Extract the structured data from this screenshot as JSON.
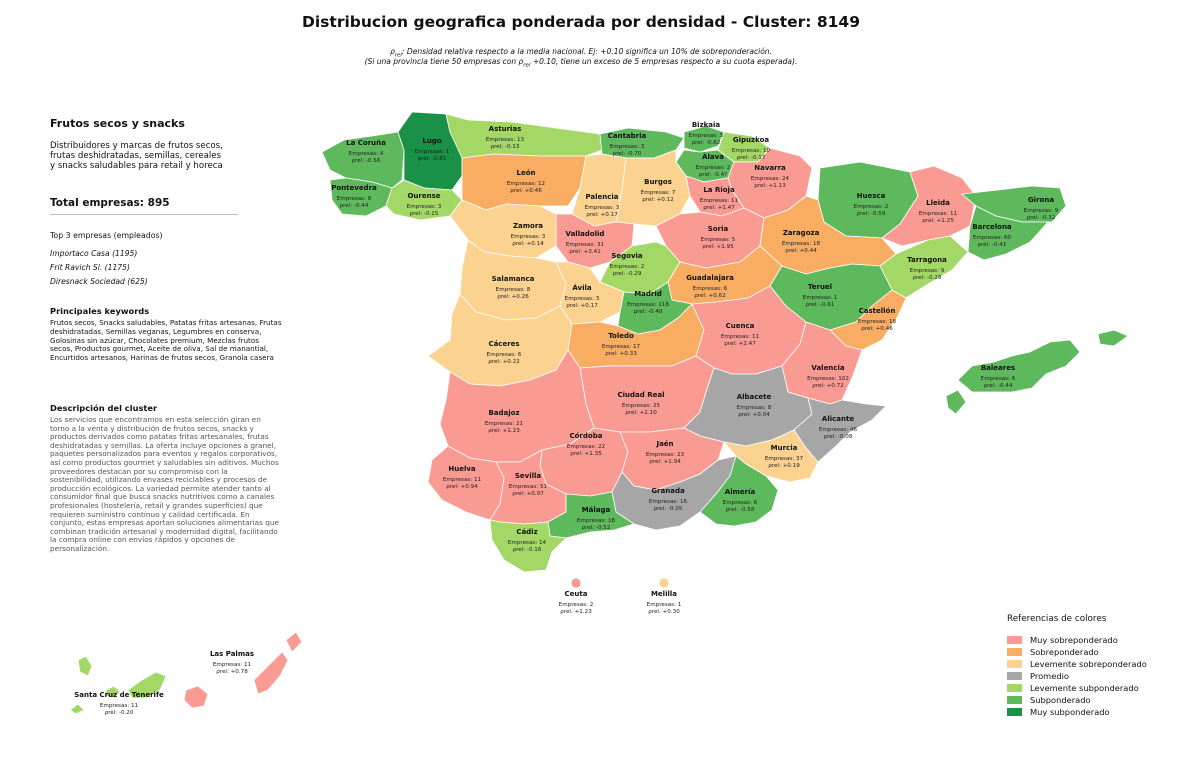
{
  "title": "Distribucion geografica ponderada por densidad - Cluster: 8149",
  "note_line1": ": Densidad relativa respecto a la media nacional. Ej: +0.10 significa un 10% de sobreponderación.",
  "note_line2_a": "(Si una provincia tiene 50 empresas con ",
  "note_line2_b": " +0.10, tiene un exceso de 5 empresas respecto a su cuota esperada).",
  "rho_symbol": "ρ",
  "rho_sub": "rel",
  "panel": {
    "heading": "Frutos secos y snacks",
    "description": "Distribuidores y marcas de frutos secos,\nfrutas deshidratadas, semillas, cereales\ny snacks saludables para retail y horeca",
    "total": "Total empresas: 895",
    "top_title": "Top 3 empresas (empleados)",
    "top": [
      "Importaco Casa (1195)",
      "Frit Ravich Sl. (1175)",
      "Diresnack Sociedad (625)"
    ],
    "keywords_title": "Principales keywords",
    "keywords": "Frutos secos, Snacks saludables, Patatas fritas artesanas, Frutas deshidratadas, Semillas veganas, Legumbres en conserva, Golosinas sin azúcar, Chocolates premium, Mezclas frutos secos, Productos gourmet, Aceite de oliva, Sal de manantial, Encurtidos artesanos, Harinas de frutos secos, Granola casera",
    "cluster_title": "Descripción del cluster",
    "cluster_text": "Los servicios que encontramos en esta selección giran en torno a la venta y distribución de frutos secos, snacks y productos derivados como patatas fritas artesanales, frutas deshidratadas y semillas. La oferta incluye opciones a granel, paquetes personalizados para eventos y regalos corporativos, así como productos gourmet y saludables sin aditivos. Muchos proveedores destacan por su compromiso con la sostenibilidad, utilizando envases reciclables y procesos de producción ecológicos. La variedad permite atender tanto al consumidor final que busca snacks nutritivos como a canales profesionales (hostelería, retail y grandes superficies) que requieren suministro continuo y calidad certificada. En conjunto, estas empresas aportan soluciones alimentarias que combinan tradición artesanal y modernidad digital, facilitando la compra online con envíos rápidos y opciones de personalización."
  },
  "legend": {
    "title": "Referencias de colores",
    "items": [
      {
        "label": "Muy sobreponderado",
        "color": "#f99b93"
      },
      {
        "label": "Sobreponderado",
        "color": "#f9ad63"
      },
      {
        "label": "Levemente sobreponderado",
        "color": "#fcd291"
      },
      {
        "label": "Promedio",
        "color": "#a6a6a6"
      },
      {
        "label": "Levemente subponderado",
        "color": "#a4d866"
      },
      {
        "label": "Subponderado",
        "color": "#5eb95c"
      },
      {
        "label": "Muy subponderado",
        "color": "#199146"
      }
    ]
  },
  "companies_prefix": "Empresas: ",
  "provinces": [
    {
      "name": "La Coruña",
      "count": 4,
      "rho": "-0.56",
      "category": 5
    },
    {
      "name": "Lugo",
      "count": 1,
      "rho": "-0.81",
      "category": 6
    },
    {
      "name": "Asturias",
      "count": 13,
      "rho": "-0.13",
      "category": 4
    },
    {
      "name": "Cantabria",
      "count": 3,
      "rho": "-0.70",
      "category": 5
    },
    {
      "name": "Bizkaia",
      "count": 5,
      "rho": "-0.62",
      "category": 5
    },
    {
      "name": "Gipuzkoa",
      "count": 10,
      "rho": "-0.17",
      "category": 4
    },
    {
      "name": "Álava",
      "count": 2,
      "rho": "-0.4?",
      "category": 5
    },
    {
      "name": "Navarra",
      "count": 24,
      "rho": "+1.13",
      "category": 0
    },
    {
      "name": "Pontevedra",
      "count": 8,
      "rho": "-0.44",
      "category": 5
    },
    {
      "name": "Ourense",
      "count": 3,
      "rho": "-0.15",
      "category": 4
    },
    {
      "name": "León",
      "count": 12,
      "rho": "+0.46",
      "category": 1
    },
    {
      "name": "Palencia",
      "count": 3,
      "rho": "+0.17",
      "category": 2
    },
    {
      "name": "Burgos",
      "count": 7,
      "rho": "+0.12",
      "category": 2
    },
    {
      "name": "La Rioja",
      "count": 11,
      "rho": "+1.47",
      "category": 0
    },
    {
      "name": "Huesca",
      "count": 2,
      "rho": "-0.59",
      "category": 5
    },
    {
      "name": "Lleida",
      "count": 11,
      "rho": "+1.25",
      "category": 0
    },
    {
      "name": "Girona",
      "count": 9,
      "rho": "-0.32",
      "category": 5
    },
    {
      "name": "Barcelona",
      "count": 60,
      "rho": "-0.41",
      "category": 5
    },
    {
      "name": "Zamora",
      "count": 3,
      "rho": "+0.14",
      "category": 2
    },
    {
      "name": "Valladolid",
      "count": 31,
      "rho": "+3.41",
      "category": 0
    },
    {
      "name": "Soria",
      "count": 5,
      "rho": "+1.95",
      "category": 0
    },
    {
      "name": "Zaragoza",
      "count": 18,
      "rho": "+0.44",
      "category": 1
    },
    {
      "name": "Segovia",
      "count": 2,
      "rho": "-0.29",
      "category": 4
    },
    {
      "name": "Tarragona",
      "count": 9,
      "rho": "-0.28",
      "category": 4
    },
    {
      "name": "Salamanca",
      "count": 8,
      "rho": "+0.26",
      "category": 2
    },
    {
      "name": "Ávila",
      "count": 3,
      "rho": "+0.17",
      "category": 2
    },
    {
      "name": "Guadalajara",
      "count": 6,
      "rho": "+0.62",
      "category": 1
    },
    {
      "name": "Madrid",
      "count": 118,
      "rho": "-0.40",
      "category": 5
    },
    {
      "name": "Teruel",
      "count": 1,
      "rho": "-0.61",
      "category": 5
    },
    {
      "name": "Castellón",
      "count": 18,
      "rho": "+0.46",
      "category": 1
    },
    {
      "name": "Cáceres",
      "count": 6,
      "rho": "+0.22",
      "category": 2
    },
    {
      "name": "Toledo",
      "count": 17,
      "rho": "+0.33",
      "category": 1
    },
    {
      "name": "Cuenca",
      "count": 11,
      "rho": "+2.47",
      "category": 0
    },
    {
      "name": "Valencia",
      "count": 102,
      "rho": "+0.72",
      "category": 0
    },
    {
      "name": "Baleares",
      "count": 6,
      "rho": "-0.44",
      "category": 5
    },
    {
      "name": "Ciudad Real",
      "count": 25,
      "rho": "+2.10",
      "category": 0
    },
    {
      "name": "Albacete",
      "count": 8,
      "rho": "+0.04",
      "category": 3
    },
    {
      "name": "Badajoz",
      "count": 21,
      "rho": "+1.23",
      "category": 0
    },
    {
      "name": "Alicante",
      "count": 46,
      "rho": "-0.08",
      "category": 3
    },
    {
      "name": "Córdoba",
      "count": 22,
      "rho": "+1.35",
      "category": 0
    },
    {
      "name": "Jaén",
      "count": 23,
      "rho": "+1.94",
      "category": 0
    },
    {
      "name": "Murcia",
      "count": 37,
      "rho": "+0.19",
      "category": 2
    },
    {
      "name": "Huelva",
      "count": 11,
      "rho": "+0.94",
      "category": 0
    },
    {
      "name": "Sevilla",
      "count": 51,
      "rho": "+0.97",
      "category": 0
    },
    {
      "name": "Granada",
      "count": 16,
      "rho": "-0.05",
      "category": 3
    },
    {
      "name": "Almería",
      "count": 6,
      "rho": "-0.58",
      "category": 5
    },
    {
      "name": "Málaga",
      "count": 18,
      "rho": "-0.52",
      "category": 5
    },
    {
      "name": "Cádiz",
      "count": 14,
      "rho": "-0.16",
      "category": 4
    },
    {
      "name": "Ceuta",
      "count": 2,
      "rho": "+1.23",
      "category": 0
    },
    {
      "name": "Melilla",
      "count": 1,
      "rho": "+0.30",
      "category": 2
    },
    {
      "name": "Las Palmas",
      "count": 11,
      "rho": "+0.78",
      "category": 0
    },
    {
      "name": "Santa Cruz de Tenerife",
      "count": 11,
      "rho": "-0.20",
      "category": 4
    }
  ]
}
